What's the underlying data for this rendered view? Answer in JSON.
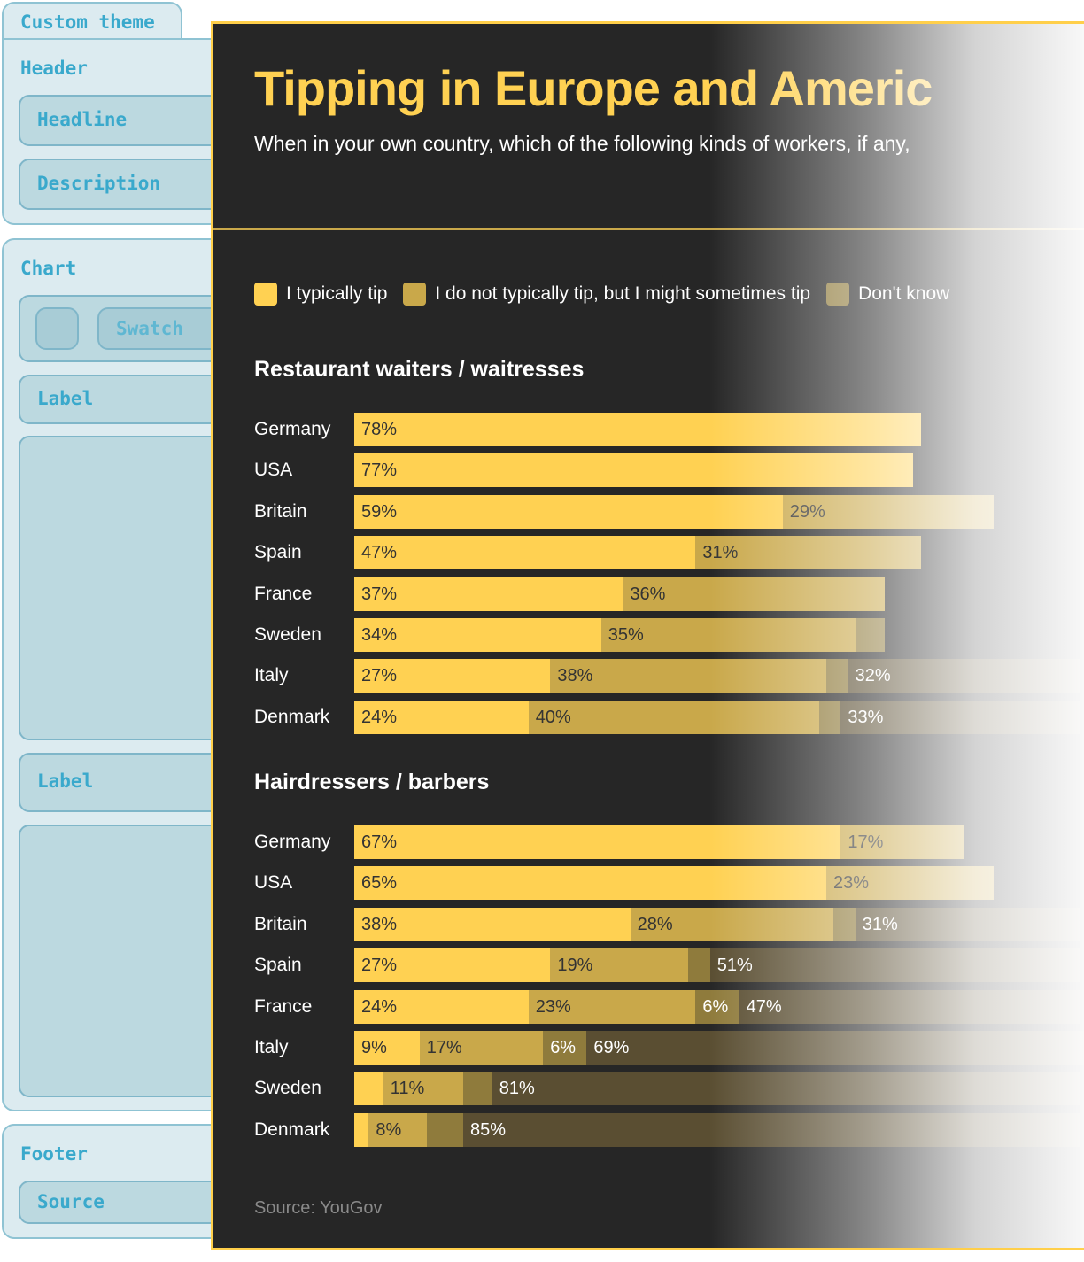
{
  "theme": {
    "tab": "Custom theme",
    "header": "Header",
    "headline": "Headline",
    "description": "Description",
    "chart": "Chart",
    "swatch": "Swatch",
    "label1": "Label",
    "label2": "Label",
    "footer": "Footer",
    "source": "Source"
  },
  "colors": {
    "tip": "#ffd152",
    "sometimes": "#c9a84a",
    "dont_know": "#8f7b3c",
    "other": "#5a4e32",
    "accent": "#ffcf4a",
    "panel": "#262626"
  },
  "header": {
    "title": "Tipping in Europe and Americ",
    "description": "When in your own country, which of the following kinds of workers, if any,"
  },
  "chart_data": {
    "type": "bar",
    "orientation": "horizontal-stacked",
    "xlim": [
      0,
      100
    ],
    "legend": [
      "I typically tip",
      "I do not typically tip, but I might sometimes tip",
      "Don't know"
    ],
    "legend_placement": "top-left",
    "groups": [
      {
        "title": "Restaurant waiters / waitresses",
        "rows": [
          {
            "country": "Germany",
            "segments": [
              {
                "v": 78,
                "l": "78%"
              }
            ]
          },
          {
            "country": "USA",
            "segments": [
              {
                "v": 77,
                "l": "77%"
              }
            ]
          },
          {
            "country": "Britain",
            "segments": [
              {
                "v": 59,
                "l": "59%"
              },
              {
                "v": 29,
                "l": "29%"
              }
            ]
          },
          {
            "country": "Spain",
            "segments": [
              {
                "v": 47,
                "l": "47%"
              },
              {
                "v": 31,
                "l": "31%"
              }
            ]
          },
          {
            "country": "France",
            "segments": [
              {
                "v": 37,
                "l": "37%"
              },
              {
                "v": 36,
                "l": "36%"
              }
            ]
          },
          {
            "country": "Sweden",
            "segments": [
              {
                "v": 34,
                "l": "34%"
              },
              {
                "v": 35,
                "l": "35%"
              },
              {
                "v": 4,
                "l": ""
              }
            ]
          },
          {
            "country": "Italy",
            "segments": [
              {
                "v": 27,
                "l": "27%"
              },
              {
                "v": 38,
                "l": "38%"
              },
              {
                "v": 3,
                "l": ""
              },
              {
                "v": 32,
                "l": "32%"
              }
            ]
          },
          {
            "country": "Denmark",
            "segments": [
              {
                "v": 24,
                "l": "24%"
              },
              {
                "v": 40,
                "l": "40%"
              },
              {
                "v": 3,
                "l": ""
              },
              {
                "v": 33,
                "l": "33%"
              }
            ]
          }
        ]
      },
      {
        "title": "Hairdressers / barbers",
        "rows": [
          {
            "country": "Germany",
            "segments": [
              {
                "v": 67,
                "l": "67%"
              },
              {
                "v": 17,
                "l": "17%"
              }
            ]
          },
          {
            "country": "USA",
            "segments": [
              {
                "v": 65,
                "l": "65%"
              },
              {
                "v": 23,
                "l": "23%"
              }
            ]
          },
          {
            "country": "Britain",
            "segments": [
              {
                "v": 38,
                "l": "38%"
              },
              {
                "v": 28,
                "l": "28%"
              },
              {
                "v": 3,
                "l": ""
              },
              {
                "v": 31,
                "l": "31%"
              }
            ]
          },
          {
            "country": "Spain",
            "segments": [
              {
                "v": 27,
                "l": "27%"
              },
              {
                "v": 19,
                "l": "19%"
              },
              {
                "v": 3,
                "l": ""
              },
              {
                "v": 51,
                "l": "51%"
              }
            ]
          },
          {
            "country": "France",
            "segments": [
              {
                "v": 24,
                "l": "24%"
              },
              {
                "v": 23,
                "l": "23%"
              },
              {
                "v": 6,
                "l": "6%"
              },
              {
                "v": 47,
                "l": "47%"
              }
            ]
          },
          {
            "country": "Italy",
            "segments": [
              {
                "v": 9,
                "l": "9%"
              },
              {
                "v": 17,
                "l": "17%"
              },
              {
                "v": 6,
                "l": "6%"
              },
              {
                "v": 69,
                "l": "69%"
              }
            ]
          },
          {
            "country": "Sweden",
            "segments": [
              {
                "v": 4,
                "l": ""
              },
              {
                "v": 11,
                "l": "11%"
              },
              {
                "v": 4,
                "l": ""
              },
              {
                "v": 81,
                "l": "81%"
              }
            ]
          },
          {
            "country": "Denmark",
            "segments": [
              {
                "v": 2,
                "l": ""
              },
              {
                "v": 8,
                "l": "8%"
              },
              {
                "v": 5,
                "l": ""
              },
              {
                "v": 85,
                "l": "85%"
              }
            ]
          }
        ]
      }
    ]
  },
  "footer": {
    "source": "Source: YouGov"
  }
}
